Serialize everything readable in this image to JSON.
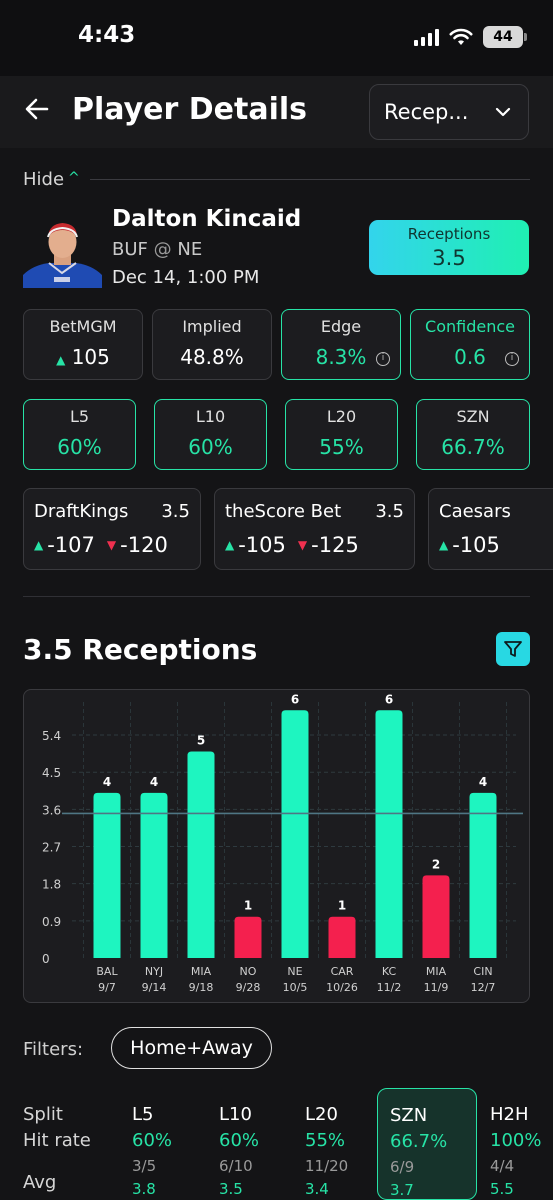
{
  "status": {
    "time": "4:43",
    "battery": "44"
  },
  "header": {
    "title": "Player Details",
    "market_select": "Recep..."
  },
  "hide_label": "Hide",
  "player": {
    "name": "Dalton Kincaid",
    "team": "BUF",
    "at": "@",
    "opponent": "NE",
    "date": "Dec 14, 1:00 PM"
  },
  "prop": {
    "label": "Receptions",
    "value": "3.5"
  },
  "summary_stats": [
    {
      "label": "BetMGM",
      "value": "105",
      "arrow": "up"
    },
    {
      "label": "Implied",
      "value": "48.8%"
    },
    {
      "label": "Edge",
      "value": "8.3%"
    },
    {
      "label": "Confidence",
      "value": "0.6"
    }
  ],
  "hit_rates": [
    {
      "label": "L5",
      "value": "60%"
    },
    {
      "label": "L10",
      "value": "60%"
    },
    {
      "label": "L20",
      "value": "55%"
    },
    {
      "label": "SZN",
      "value": "66.7%"
    }
  ],
  "sportsbooks": [
    {
      "name": "DraftKings",
      "line": "3.5",
      "over": "-107",
      "under": "-120"
    },
    {
      "name": "theScore Bet",
      "line": "3.5",
      "over": "-105",
      "under": "-125"
    },
    {
      "name": "Caesars",
      "line": "",
      "over": "-105",
      "under": ""
    }
  ],
  "section_title": "3.5 Receptions",
  "chart_data": {
    "type": "bar",
    "title": "3.5 Receptions",
    "y_ticks": [
      "0",
      "0.9",
      "1.8",
      "2.7",
      "3.6",
      "4.5",
      "5.4"
    ],
    "ylim": [
      0,
      6.2
    ],
    "threshold": 3.5,
    "bars": [
      {
        "opp": "BAL",
        "date": "9/7",
        "value": 4
      },
      {
        "opp": "NYJ",
        "date": "9/14",
        "value": 4
      },
      {
        "opp": "MIA",
        "date": "9/18",
        "value": 5
      },
      {
        "opp": "NO",
        "date": "9/28",
        "value": 1
      },
      {
        "opp": "NE",
        "date": "10/5",
        "value": 6
      },
      {
        "opp": "CAR",
        "date": "10/26",
        "value": 1
      },
      {
        "opp": "KC",
        "date": "11/2",
        "value": 6
      },
      {
        "opp": "MIA",
        "date": "11/9",
        "value": 2
      },
      {
        "opp": "CIN",
        "date": "12/7",
        "value": 4
      }
    ],
    "colors": {
      "hit": "#1ef5c0",
      "miss": "#f4204e",
      "line": "#4f7684"
    }
  },
  "filters": {
    "label": "Filters:",
    "active": "Home+Away"
  },
  "split_table": {
    "row_labels": {
      "split": "Split",
      "hit_rate": "Hit rate",
      "avg": "Avg"
    },
    "columns": [
      {
        "split": "L5",
        "hit_rate": "60%",
        "count": "3/5",
        "avg": "3.8"
      },
      {
        "split": "L10",
        "hit_rate": "60%",
        "count": "6/10",
        "avg": "3.5"
      },
      {
        "split": "L20",
        "hit_rate": "55%",
        "count": "11/20",
        "avg": "3.4"
      },
      {
        "split": "SZN",
        "hit_rate": "66.7%",
        "count": "6/9",
        "avg": "3.7"
      },
      {
        "split": "H2H",
        "hit_rate": "100%",
        "count": "4/4",
        "avg": "5.5"
      }
    ]
  }
}
